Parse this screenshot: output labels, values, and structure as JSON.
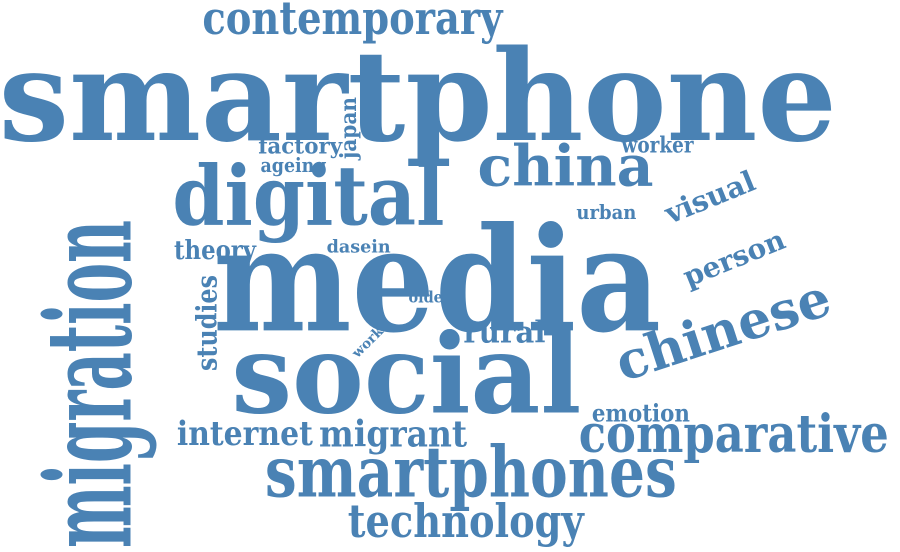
{
  "colors": {
    "word": "#4a82b4",
    "background": "#ffffff"
  },
  "words": [
    {
      "id": "smartphone",
      "text": "smartphone"
    },
    {
      "id": "contemporary",
      "text": "contemporary"
    },
    {
      "id": "media",
      "text": "media"
    },
    {
      "id": "social",
      "text": "social"
    },
    {
      "id": "migration",
      "text": "migration"
    },
    {
      "id": "digital",
      "text": "digital"
    },
    {
      "id": "china",
      "text": "china"
    },
    {
      "id": "chinese",
      "text": "chinese"
    },
    {
      "id": "smartphones",
      "text": "smartphones"
    },
    {
      "id": "comparative",
      "text": "comparative"
    },
    {
      "id": "technology",
      "text": "technology"
    },
    {
      "id": "internet",
      "text": "internet"
    },
    {
      "id": "migrant",
      "text": "migrant"
    },
    {
      "id": "visual",
      "text": "visual"
    },
    {
      "id": "person",
      "text": "person"
    },
    {
      "id": "rural",
      "text": "rural"
    },
    {
      "id": "emotion",
      "text": "emotion"
    },
    {
      "id": "worker",
      "text": "worker"
    },
    {
      "id": "urban",
      "text": "urban"
    },
    {
      "id": "theory",
      "text": "theory"
    },
    {
      "id": "dasein",
      "text": "dasein"
    },
    {
      "id": "factory",
      "text": "factory"
    },
    {
      "id": "ageing",
      "text": "ageing"
    },
    {
      "id": "japan",
      "text": "japan"
    },
    {
      "id": "studies",
      "text": "studies"
    },
    {
      "id": "work",
      "text": "work"
    },
    {
      "id": "older",
      "text": "older"
    }
  ]
}
